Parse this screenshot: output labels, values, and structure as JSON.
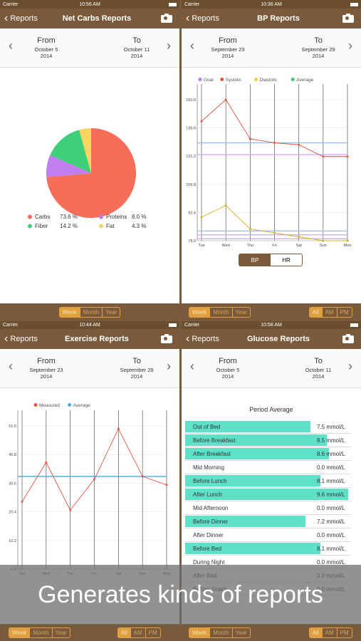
{
  "screens": [
    {
      "status": {
        "carrier": "Carrier",
        "time": "10:56 AM"
      },
      "nav": {
        "back": "Reports",
        "title": "Net Carbs Reports"
      },
      "dates": {
        "from_label": "From",
        "from_date": "October 5",
        "from_year": "2014",
        "to_label": "To",
        "to_date": "October 11",
        "to_year": "2014"
      },
      "bottom_tabs": [
        "Week",
        "Month",
        "Year"
      ]
    },
    {
      "status": {
        "carrier": "Carrier",
        "time": "10:36 AM"
      },
      "nav": {
        "back": "Reports",
        "title": "BP Reports"
      },
      "dates": {
        "from_label": "From",
        "from_date": "September 23",
        "from_year": "2014",
        "to_label": "To",
        "to_date": "September 29",
        "to_year": "2014"
      },
      "toggle": [
        "BP",
        "HR"
      ],
      "bottom_tabs": [
        "Week",
        "Month",
        "Year"
      ],
      "bottom_tabs2": [
        "All",
        "AM",
        "PM"
      ]
    },
    {
      "status": {
        "carrier": "Carrier",
        "time": "10:44 AM"
      },
      "nav": {
        "back": "Reports",
        "title": "Exercise Reports"
      },
      "dates": {
        "from_label": "From",
        "from_date": "September 23",
        "from_year": "2014",
        "to_label": "To",
        "to_date": "September 29",
        "to_year": "2014"
      },
      "bottom_tabs": [
        "Week",
        "Month",
        "Year"
      ]
    },
    {
      "status": {
        "carrier": "Carrier",
        "time": "10:58 AM"
      },
      "nav": {
        "back": "Reports",
        "title": "Glucose Reports"
      },
      "dates": {
        "from_label": "From",
        "from_date": "October 5",
        "from_year": "2014",
        "to_label": "To",
        "to_date": "October 11",
        "to_year": "2014"
      },
      "section_title": "Period Average",
      "rows": [
        {
          "label": "Out of Bed",
          "value": "7.5 mmol/L",
          "level": 0.77
        },
        {
          "label": "Before Breakfast",
          "value": "8.5 mmol/L",
          "level": 0.87
        },
        {
          "label": "After Breakfast",
          "value": "8.6 mmol/L",
          "level": 0.88
        },
        {
          "label": "Mid Morning",
          "value": "0.0 mmol/L",
          "level": 0
        },
        {
          "label": "Before Lunch",
          "value": "8.1 mmol/L",
          "level": 0.83
        },
        {
          "label": "After Lunch",
          "value": "9.6 mmol/L",
          "level": 1.0
        },
        {
          "label": "Mid Afternoon",
          "value": "0.0 mmol/L",
          "level": 0
        },
        {
          "label": "Before Dinner",
          "value": "7.2 mmol/L",
          "level": 0.74
        },
        {
          "label": "After Dinner",
          "value": "0.0 mmol/L",
          "level": 0
        },
        {
          "label": "Before Bed",
          "value": "8.1 mmol/L",
          "level": 0.83
        },
        {
          "label": "During Night",
          "value": "0.0 mmol/L",
          "level": 0
        },
        {
          "label": "After Bed",
          "value": "0.0 mmol/L",
          "level": 0
        },
        {
          "label": "Before Snack",
          "value": "0.0 mmol/L",
          "level": 0
        }
      ],
      "bottom_tabs": [
        "Week",
        "Month",
        "Year"
      ],
      "bottom_tabs2": [
        "All",
        "AM",
        "PM"
      ]
    }
  ],
  "banner": "Generates kinds of reports",
  "chart_data": [
    {
      "type": "pie",
      "series": [
        {
          "name": "Carbs",
          "value": 73.6,
          "label": "73.6 %",
          "color": "#f56e5a"
        },
        {
          "name": "Proteins",
          "value": 8.0,
          "label": "8.0 %",
          "color": "#c07ef0"
        },
        {
          "name": "Fiber",
          "value": 14.2,
          "label": "14.2 %",
          "color": "#3fcf7a"
        },
        {
          "name": "Fat",
          "value": 4.3,
          "label": "4.3 %",
          "color": "#f7d560"
        }
      ]
    },
    {
      "type": "line",
      "legend": [
        {
          "name": "Goal",
          "color": "#b57ee8"
        },
        {
          "name": "Systolic",
          "color": "#e0533f"
        },
        {
          "name": "Diastolic",
          "color": "#f0d040"
        },
        {
          "name": "Average",
          "color": "#40c870"
        }
      ],
      "categories": [
        "Tue",
        "Wed",
        "Thu",
        "Fri",
        "Sat",
        "Sun",
        "Mon"
      ],
      "yticks": [
        "150.0",
        "135.6",
        "121.2",
        "106.8",
        "92.4",
        "78.0"
      ],
      "ylim": [
        78,
        150
      ],
      "series": [
        {
          "name": "Systolic",
          "values": [
            139,
            150,
            130,
            128,
            127,
            121,
            121
          ],
          "color": "#e0533f"
        },
        {
          "name": "Diastolic",
          "values": [
            90,
            96,
            84,
            82,
            80,
            78,
            78
          ],
          "color": "#d4b020"
        }
      ],
      "hlines": [
        {
          "value": 128,
          "color": "#9bbde0"
        },
        {
          "value": 122,
          "color": "#c8a8e8"
        },
        {
          "value": 83,
          "color": "#9bbde0"
        },
        {
          "value": 81,
          "color": "#c8a8e8"
        },
        {
          "value": 79,
          "color": "#c8a8e8"
        }
      ]
    },
    {
      "type": "line",
      "legend": [
        {
          "name": "Measured",
          "color": "#e85545"
        },
        {
          "name": "Average",
          "color": "#4aa8e8"
        }
      ],
      "categories": [
        "Tue",
        "Wed",
        "Thu",
        "Fri",
        "Sat",
        "Sun",
        "Mon"
      ],
      "yticks": [
        "51.0",
        "40.8",
        "30.6",
        "20.4",
        "10.2",
        "0.0"
      ],
      "ylim": [
        0,
        51
      ],
      "series": [
        {
          "name": "Measured",
          "values": [
            24,
            38,
            21,
            32,
            50,
            33,
            30
          ],
          "color": "#e85545"
        }
      ],
      "hlines": [
        {
          "value": 33,
          "color": "#4aa8e8"
        }
      ]
    }
  ]
}
